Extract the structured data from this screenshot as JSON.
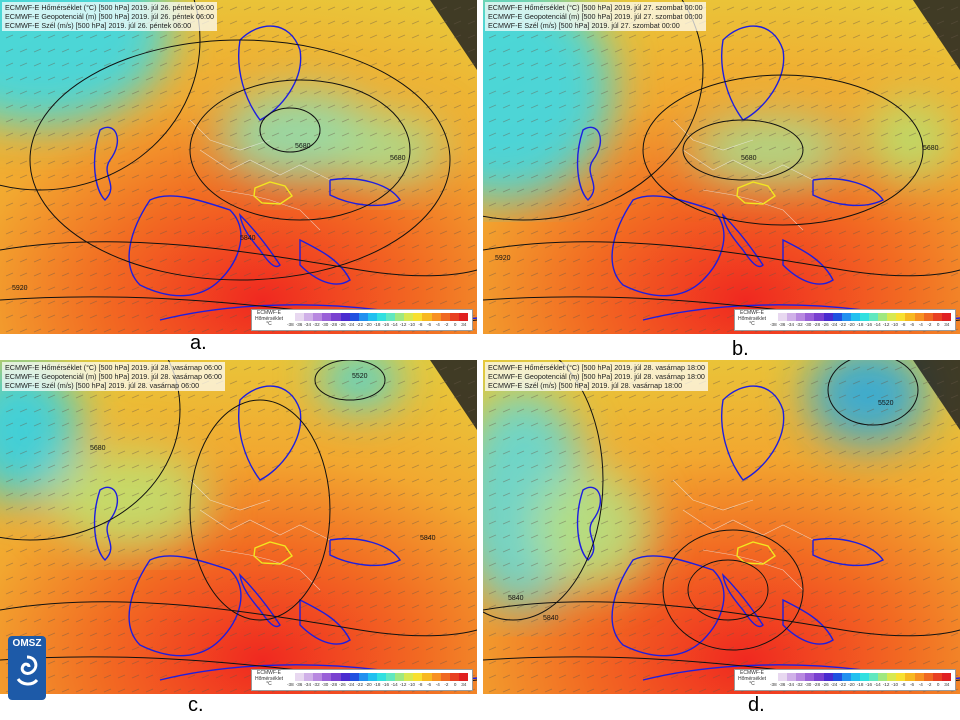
{
  "panels": [
    {
      "id": "a",
      "label": "a.",
      "header": [
        "ECMWF-E Hőmérséklet (°C) [500 hPa] 2019. júl 26. péntek 06:00",
        "ECMWF-E Geopotenciál (m) [500 hPa] 2019. júl 26. péntek 06:00",
        "ECMWF-E Szél (m/s) [500 hPa] 2019. júl 26. péntek 06:00"
      ],
      "contour_labels": [
        "5680",
        "5840",
        "5680",
        "5920"
      ]
    },
    {
      "id": "b",
      "label": "b.",
      "header": [
        "ECMWF-E Hőmérséklet (°C) [500 hPa] 2019. júl 27. szombat 00:00",
        "ECMWF-E Geopotenciál (m) [500 hPa] 2019. júl 27. szombat 00:00",
        "ECMWF-E Szél (m/s) [500 hPa] 2019. júl 27. szombat 00:00"
      ],
      "contour_labels": [
        "5680",
        "5920",
        "5680"
      ]
    },
    {
      "id": "c",
      "label": "c.",
      "header": [
        "ECMWF-E Hőmérséklet (°C) [500 hPa] 2019. júl 28. vasárnap 06:00",
        "ECMWF-E Geopotenciál (m) [500 hPa] 2019. júl 28. vasárnap 06:00",
        "ECMWF-E Szél (m/s) [500 hPa] 2019. júl 28. vasárnap 06:00"
      ],
      "contour_labels": [
        "5840",
        "5520",
        "5680"
      ]
    },
    {
      "id": "d",
      "label": "d.",
      "header": [
        "ECMWF-E Hőmérséklet (°C) [500 hPa] 2019. júl 28. vasárnap 18:00",
        "ECMWF-E Geopotenciál (m) [500 hPa] 2019. júl 28. vasárnap 18:00",
        "ECMWF-E Szél (m/s) [500 hPa] 2019. júl 28. vasárnap 18:00"
      ],
      "contour_labels": [
        "5840",
        "5840",
        "5520"
      ]
    }
  ],
  "legend": {
    "title_lines": [
      "ECMWF-E",
      "Hőmérséklet",
      "°C"
    ],
    "ticks": [
      "-38",
      "-36",
      "-34",
      "-32",
      "-30",
      "-28",
      "-26",
      "-24",
      "-22",
      "-20",
      "-18",
      "-16",
      "-14",
      "-12",
      "-10",
      "-8",
      "-6",
      "-4",
      "-2",
      "0",
      "34"
    ],
    "colors": [
      "#ffffff",
      "#e8d8f0",
      "#d0b0e8",
      "#b888e0",
      "#9a60d8",
      "#7a40d0",
      "#4a2ad0",
      "#2050e0",
      "#2090f0",
      "#20c0f0",
      "#30e0e0",
      "#60e8c0",
      "#a0e880",
      "#d8e850",
      "#f8e030",
      "#f8b820",
      "#f89020",
      "#f06820",
      "#e84020",
      "#e02020"
    ]
  },
  "logo": {
    "text": "OMSZ"
  },
  "colors": {
    "land_border": "#1e1ee0",
    "country_border": "#f0f0f0",
    "contour": "#111111",
    "hungary_outline": "#f2e620"
  }
}
